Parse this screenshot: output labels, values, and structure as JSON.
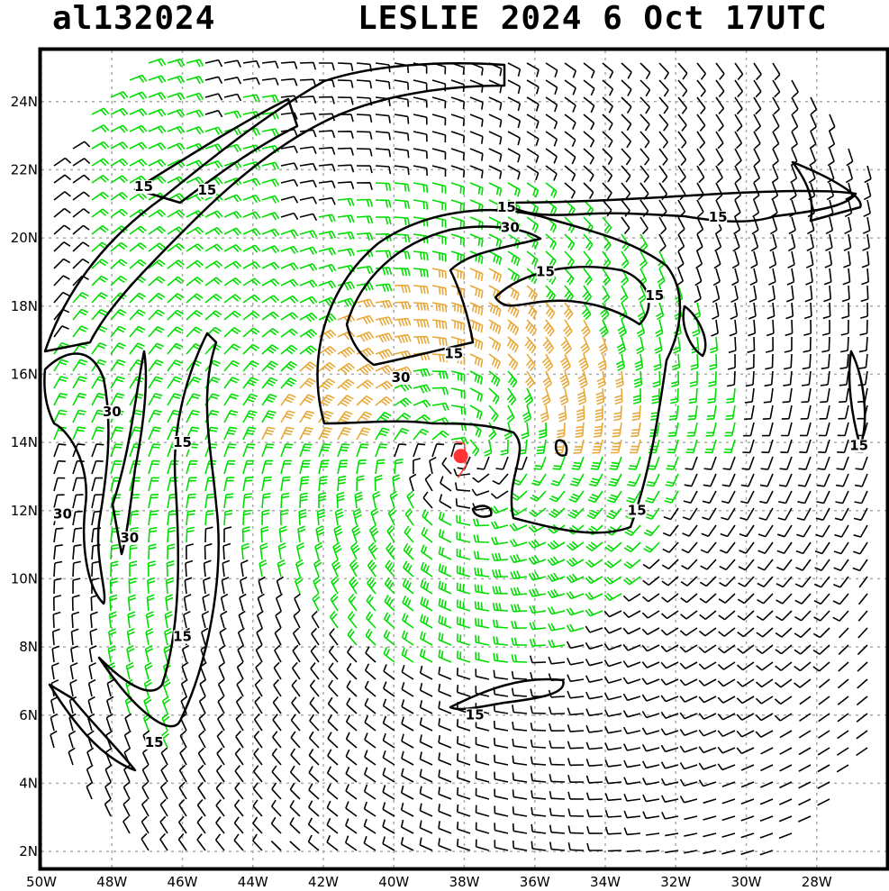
{
  "title": {
    "storm_id": "al132024",
    "storm_name_time": "LESLIE 2024  6 Oct 17UTC"
  },
  "map": {
    "lon_range": [
      -50,
      -26
    ],
    "lat_range": [
      1.5,
      25.5
    ],
    "lon_ticks": [
      "50W",
      "48W",
      "46W",
      "44W",
      "42W",
      "40W",
      "38W",
      "36W",
      "34W",
      "32W",
      "30W",
      "28W"
    ],
    "lat_ticks": [
      "2N",
      "4N",
      "6N",
      "8N",
      "10N",
      "12N",
      "14N",
      "16N",
      "18N",
      "20N",
      "22N",
      "24N"
    ],
    "grid": "dotted",
    "storm_center": {
      "lon": -38.1,
      "lat": 13.6,
      "color": "#ff3333"
    },
    "colors": {
      "barb_light": "#000000",
      "barb_15_30": "#00dd00",
      "barb_30_plus": "#e8a838",
      "contour": "#000000"
    },
    "contour_labels": [
      {
        "text": "15",
        "lon": -47.1,
        "lat": 21.4
      },
      {
        "text": "15",
        "lon": -45.3,
        "lat": 21.3
      },
      {
        "text": "15",
        "lon": -36.8,
        "lat": 20.8
      },
      {
        "text": "30",
        "lon": -36.7,
        "lat": 20.2
      },
      {
        "text": "15",
        "lon": -35.7,
        "lat": 18.9
      },
      {
        "text": "15",
        "lon": -32.6,
        "lat": 18.2
      },
      {
        "text": "15",
        "lon": -30.8,
        "lat": 20.5
      },
      {
        "text": "15",
        "lon": -38.3,
        "lat": 16.5
      },
      {
        "text": "30",
        "lon": -39.8,
        "lat": 15.8
      },
      {
        "text": "30",
        "lon": -48.0,
        "lat": 14.8
      },
      {
        "text": "15",
        "lon": -46.0,
        "lat": 13.9
      },
      {
        "text": "30",
        "lon": -49.4,
        "lat": 11.8
      },
      {
        "text": "30",
        "lon": -47.5,
        "lat": 11.1
      },
      {
        "text": "15",
        "lon": -33.1,
        "lat": 11.9
      },
      {
        "text": "15",
        "lon": -26.8,
        "lat": 13.8
      },
      {
        "text": "15",
        "lon": -46.0,
        "lat": 8.2
      },
      {
        "text": "15",
        "lon": -37.7,
        "lat": 5.9
      },
      {
        "text": "15",
        "lon": -46.8,
        "lat": 5.1
      }
    ]
  }
}
